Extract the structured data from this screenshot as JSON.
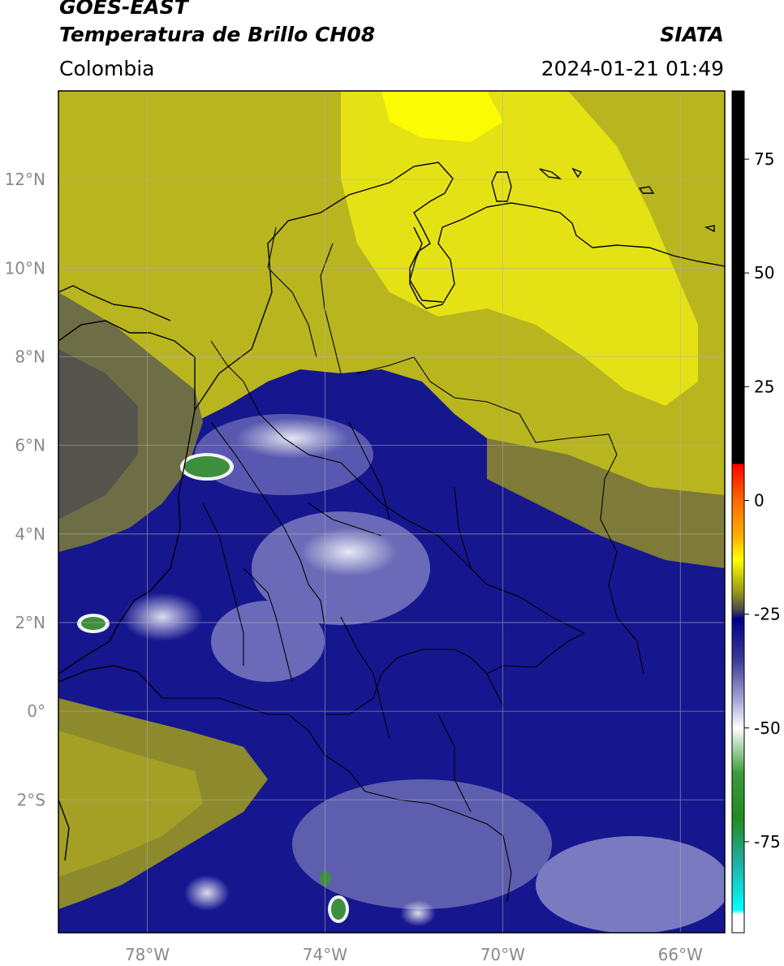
{
  "header": {
    "satellite": "GOES-EAST",
    "product": "Temperatura de Brillo CH08",
    "region": "Colombia",
    "agency": "SIATA",
    "datetime": "2024-01-21 01:49"
  },
  "map": {
    "lon_range": [
      -80,
      -65
    ],
    "lat_range": [
      -5,
      14
    ],
    "lat_ticks": [
      {
        "value": 12,
        "label": "12°N"
      },
      {
        "value": 10,
        "label": "10°N"
      },
      {
        "value": 8,
        "label": "8°N"
      },
      {
        "value": 6,
        "label": "6°N"
      },
      {
        "value": 4,
        "label": "4°N"
      },
      {
        "value": 2,
        "label": "2°N"
      },
      {
        "value": 0,
        "label": "0°"
      },
      {
        "value": -2,
        "label": "2°S"
      }
    ],
    "lon_ticks": [
      {
        "value": -78,
        "label": "78°W"
      },
      {
        "value": -74,
        "label": "74°W"
      },
      {
        "value": -70,
        "label": "70°W"
      },
      {
        "value": -66,
        "label": "66°W"
      }
    ],
    "grid": true
  },
  "colorbar": {
    "range": [
      -95,
      90
    ],
    "ticks": [
      {
        "value": 75,
        "label": "75"
      },
      {
        "value": 50,
        "label": "50"
      },
      {
        "value": 25,
        "label": "25"
      },
      {
        "value": 0,
        "label": "0"
      },
      {
        "value": -25,
        "label": "-25"
      },
      {
        "value": -50,
        "label": "-50"
      },
      {
        "value": -75,
        "label": "-75"
      }
    ],
    "stops": [
      {
        "value": 90,
        "color": "#000000"
      },
      {
        "value": 8,
        "color": "#000000"
      },
      {
        "value": 8,
        "color": "#ff0000"
      },
      {
        "value": 0,
        "color": "#ff6a00"
      },
      {
        "value": -8,
        "color": "#ffb000"
      },
      {
        "value": -13,
        "color": "#ffff00"
      },
      {
        "value": -20,
        "color": "#9a9a14"
      },
      {
        "value": -24,
        "color": "#4a4a4a"
      },
      {
        "value": -26,
        "color": "#000088"
      },
      {
        "value": -35,
        "color": "#3a3a98"
      },
      {
        "value": -44,
        "color": "#a8a8d8"
      },
      {
        "value": -50,
        "color": "#ffffff"
      },
      {
        "value": -60,
        "color": "#3a9a3a"
      },
      {
        "value": -70,
        "color": "#228b22"
      },
      {
        "value": -80,
        "color": "#20b2aa"
      },
      {
        "value": -90,
        "color": "#00ffff"
      },
      {
        "value": -91,
        "color": "#ffffff"
      },
      {
        "value": -95,
        "color": "#ffffff"
      }
    ]
  }
}
